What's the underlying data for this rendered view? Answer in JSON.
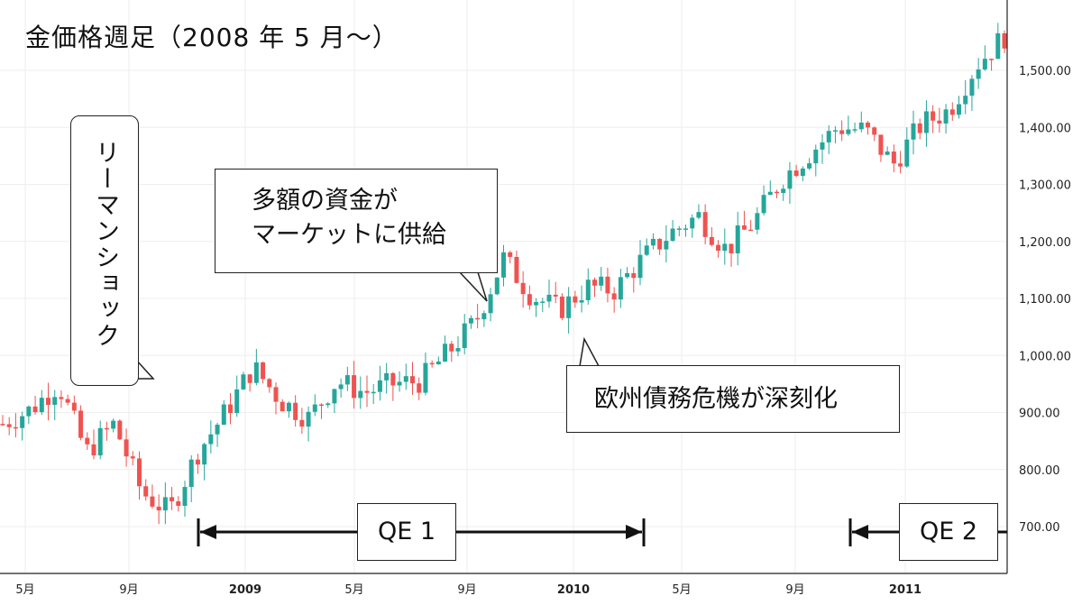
{
  "title": "金価格週足（2008 年 5 月〜）",
  "colors": {
    "up": "#26a69a",
    "down": "#ef5350",
    "grid": "#eeeeee",
    "axis": "#222222"
  },
  "annotations": {
    "lehman": "リーマンショック",
    "funds_line1": "多額の資金が",
    "funds_line2": "マーケットに供給",
    "euro": "欧州債務危機が深刻化",
    "qe1": "QE 1",
    "qe2": "QE 2"
  },
  "chart_data": {
    "type": "candlestick",
    "title": "金価格週足（2008 年 5 月〜）",
    "y_axis": {
      "ticks": [
        700,
        800,
        900,
        1000,
        1100,
        1200,
        1300,
        1400,
        1500
      ],
      "tick_labels": [
        "700.00",
        "800.00",
        "900.00",
        "1,000.00",
        "1,100.00",
        "1,200.00",
        "1,300.00",
        "1,400.00",
        "1,500.00"
      ],
      "ylim": [
        650,
        1590
      ]
    },
    "x_axis": {
      "tick_labels": [
        "5月",
        "9月",
        "2009",
        "5月",
        "9月",
        "2010",
        "5月",
        "9月",
        "2011"
      ],
      "tick_dates": [
        "2008-05",
        "2008-09",
        "2009-01",
        "2009-05",
        "2009-09",
        "2010-01",
        "2010-05",
        "2010-09",
        "2011-01"
      ]
    },
    "grid": true,
    "close_anchors": [
      {
        "date": "2008-05",
        "close": 880
      },
      {
        "date": "2008-06",
        "close": 905
      },
      {
        "date": "2008-07",
        "close": 950
      },
      {
        "date": "2008-08",
        "close": 830
      },
      {
        "date": "2008-09",
        "close": 880
      },
      {
        "date": "2008-10",
        "close": 760
      },
      {
        "date": "2008-11",
        "close": 725
      },
      {
        "date": "2008-12",
        "close": 830
      },
      {
        "date": "2009-01",
        "close": 900
      },
      {
        "date": "2009-02",
        "close": 980
      },
      {
        "date": "2009-03",
        "close": 920
      },
      {
        "date": "2009-04",
        "close": 890
      },
      {
        "date": "2009-05",
        "close": 955
      },
      {
        "date": "2009-06",
        "close": 935
      },
      {
        "date": "2009-07",
        "close": 950
      },
      {
        "date": "2009-08",
        "close": 955
      },
      {
        "date": "2009-09",
        "close": 1005
      },
      {
        "date": "2009-10",
        "close": 1060
      },
      {
        "date": "2009-11",
        "close": 1170
      },
      {
        "date": "2009-12",
        "close": 1105
      },
      {
        "date": "2010-01",
        "close": 1080
      },
      {
        "date": "2010-02",
        "close": 1120
      },
      {
        "date": "2010-03",
        "close": 1115
      },
      {
        "date": "2010-04",
        "close": 1170
      },
      {
        "date": "2010-05",
        "close": 1215
      },
      {
        "date": "2010-06",
        "close": 1245
      },
      {
        "date": "2010-07",
        "close": 1185
      },
      {
        "date": "2010-08",
        "close": 1235
      },
      {
        "date": "2010-09",
        "close": 1310
      },
      {
        "date": "2010-10",
        "close": 1355
      },
      {
        "date": "2010-11",
        "close": 1400
      },
      {
        "date": "2010-12",
        "close": 1395
      },
      {
        "date": "2011-01",
        "close": 1335
      },
      {
        "date": "2011-02",
        "close": 1405
      },
      {
        "date": "2011-03",
        "close": 1430
      },
      {
        "date": "2011-04",
        "close": 1510
      },
      {
        "date": "2011-04-end",
        "close": 1560
      }
    ]
  }
}
